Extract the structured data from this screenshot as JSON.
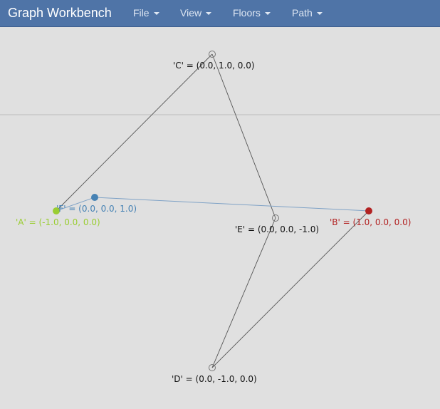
{
  "app": {
    "title": "Graph Workbench"
  },
  "menus": [
    {
      "label": "File"
    },
    {
      "label": "View"
    },
    {
      "label": "Floors"
    },
    {
      "label": "Path"
    }
  ],
  "colors": {
    "navbar": "#4f74a7",
    "canvas": "#e0e0e0",
    "edge": "#555555",
    "path_edge": "#7fa2c6",
    "node_a": "#9acd32",
    "node_b": "#b22222",
    "node_f": "#4682b4",
    "node_default": "#777777"
  },
  "nodes": [
    {
      "id": "A",
      "label": "'A' = (-1.0, 0.0, 0.0)",
      "color": "#9acd32",
      "filled": true
    },
    {
      "id": "B",
      "label": "'B' = (1.0, 0.0, 0.0)",
      "color": "#b22222",
      "filled": true
    },
    {
      "id": "C",
      "label": "'C' = (0.0, 1.0, 0.0)",
      "color": "#111111",
      "filled": false
    },
    {
      "id": "D",
      "label": "'D' = (0.0, -1.0, 0.0)",
      "color": "#111111",
      "filled": false
    },
    {
      "id": "E",
      "label": "'E' = (0.0, 0.0, -1.0)",
      "color": "#111111",
      "filled": false
    },
    {
      "id": "F",
      "label": "'F' = (0.0, 0.0, 1.0)",
      "color": "#4682b4",
      "filled": true
    }
  ]
}
